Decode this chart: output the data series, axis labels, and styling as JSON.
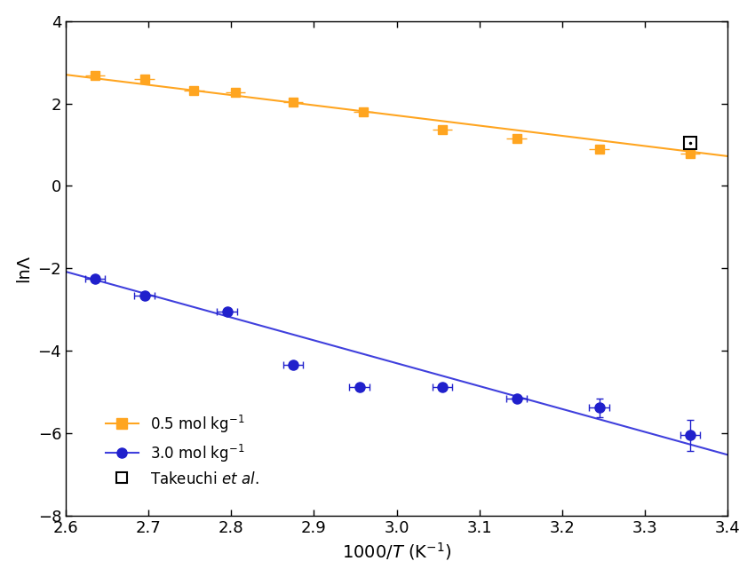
{
  "title": "",
  "xlabel": "1000/Τ (K⁻¹)",
  "ylabel": "lnΛ",
  "xlim": [
    2.6,
    3.4
  ],
  "ylim": [
    -8,
    4
  ],
  "xticks": [
    2.6,
    2.7,
    2.8,
    2.9,
    3.0,
    3.1,
    3.2,
    3.3,
    3.4
  ],
  "yticks": [
    -8,
    -6,
    -4,
    -2,
    0,
    2,
    4
  ],
  "orange_x": [
    2.635,
    2.695,
    2.755,
    2.805,
    2.875,
    2.96,
    3.055,
    3.145,
    3.245,
    3.355
  ],
  "orange_y": [
    2.67,
    2.6,
    2.32,
    2.27,
    2.04,
    1.79,
    1.37,
    1.16,
    0.9,
    0.78
  ],
  "orange_xerr": [
    0.012,
    0.012,
    0.012,
    0.012,
    0.012,
    0.012,
    0.012,
    0.012,
    0.012,
    0.012
  ],
  "orange_color": "#FFA520",
  "orange_line_color": "#FFA520",
  "blue_x": [
    2.635,
    2.695,
    2.795,
    2.875,
    2.955,
    3.055,
    3.145,
    3.245,
    3.355
  ],
  "blue_y": [
    -2.25,
    -2.65,
    -3.05,
    -4.35,
    -4.88,
    -4.88,
    -5.15,
    -5.38,
    -6.05
  ],
  "blue_xerr": [
    0.012,
    0.012,
    0.012,
    0.012,
    0.012,
    0.012,
    0.012,
    0.012,
    0.012
  ],
  "blue_yerr": [
    0.0,
    0.0,
    0.0,
    0.0,
    0.0,
    0.0,
    0.0,
    0.22,
    0.38
  ],
  "blue_color": "#2020CC",
  "blue_line_color": "#4040DD",
  "takeuchi_x": 3.355,
  "takeuchi_y": 1.05,
  "fit_orange_slope": -2.47,
  "fit_orange_intercept": 9.12,
  "fit_blue_slope": -5.55,
  "fit_blue_intercept": 12.35,
  "background_color": "#ffffff"
}
